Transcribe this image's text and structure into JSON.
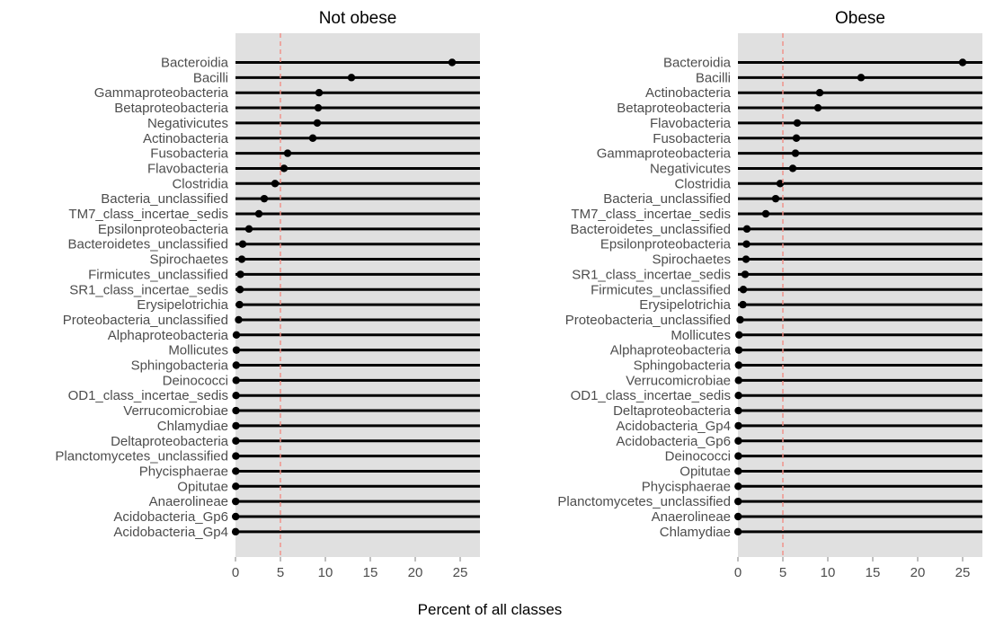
{
  "xlabel": "Percent of all classes",
  "colors": {
    "panel_bg": "#e0e0e0",
    "line": "#000000",
    "point": "#000000",
    "reference_line": "#f28e85",
    "tick_text": "#4d4d4d"
  },
  "chart_data": [
    {
      "type": "dot",
      "title": "Not obese",
      "xlim": [
        0,
        27.2
      ],
      "xticks": [
        0,
        5,
        10,
        15,
        20,
        25
      ],
      "reference_x": 5,
      "grid": false,
      "categories": [
        "Bacteroidia",
        "Bacilli",
        "Gammaproteobacteria",
        "Betaproteobacteria",
        "Negativicutes",
        "Actinobacteria",
        "Fusobacteria",
        "Flavobacteria",
        "Clostridia",
        "Bacteria_unclassified",
        "TM7_class_incertae_sedis",
        "Epsilonproteobacteria",
        "Bacteroidetes_unclassified",
        "Spirochaetes",
        "Firmicutes_unclassified",
        "SR1_class_incertae_sedis",
        "Erysipelotrichia",
        "Proteobacteria_unclassified",
        "Alphaproteobacteria",
        "Mollicutes",
        "Sphingobacteria",
        "Deinococci",
        "OD1_class_incertae_sedis",
        "Verrucomicrobiae",
        "Chlamydiae",
        "Deltaproteobacteria",
        "Planctomycetes_unclassified",
        "Phycisphaerae",
        "Opitutae",
        "Anaerolineae",
        "Acidobacteria_Gp6",
        "Acidobacteria_Gp4"
      ],
      "values": [
        24.1,
        12.9,
        9.3,
        9.2,
        9.1,
        8.6,
        5.8,
        5.4,
        4.4,
        3.2,
        2.6,
        1.5,
        0.8,
        0.7,
        0.55,
        0.5,
        0.45,
        0.35,
        0.1,
        0.1,
        0.08,
        0.07,
        0.06,
        0.05,
        0.05,
        0.04,
        0.04,
        0.03,
        0.03,
        0.02,
        0.02,
        0.01
      ]
    },
    {
      "type": "dot",
      "title": "Obese",
      "xlim": [
        0,
        27.2
      ],
      "xticks": [
        0,
        5,
        10,
        15,
        20,
        25
      ],
      "reference_x": 5,
      "grid": false,
      "categories": [
        "Bacteroidia",
        "Bacilli",
        "Actinobacteria",
        "Betaproteobacteria",
        "Flavobacteria",
        "Fusobacteria",
        "Gammaproteobacteria",
        "Negativicutes",
        "Clostridia",
        "Bacteria_unclassified",
        "TM7_class_incertae_sedis",
        "Bacteroidetes_unclassified",
        "Epsilonproteobacteria",
        "Spirochaetes",
        "SR1_class_incertae_sedis",
        "Firmicutes_unclassified",
        "Erysipelotrichia",
        "Proteobacteria_unclassified",
        "Mollicutes",
        "Alphaproteobacteria",
        "Sphingobacteria",
        "Verrucomicrobiae",
        "OD1_class_incertae_sedis",
        "Deltaproteobacteria",
        "Acidobacteria_Gp4",
        "Acidobacteria_Gp6",
        "Deinococci",
        "Opitutae",
        "Phycisphaerae",
        "Planctomycetes_unclassified",
        "Anaerolineae",
        "Chlamydiae"
      ],
      "values": [
        25.0,
        13.7,
        9.1,
        8.9,
        6.6,
        6.5,
        6.4,
        6.1,
        4.7,
        4.2,
        3.1,
        1.0,
        0.95,
        0.9,
        0.8,
        0.6,
        0.55,
        0.25,
        0.12,
        0.1,
        0.08,
        0.07,
        0.06,
        0.05,
        0.05,
        0.04,
        0.04,
        0.03,
        0.03,
        0.02,
        0.02,
        0.01
      ]
    }
  ]
}
